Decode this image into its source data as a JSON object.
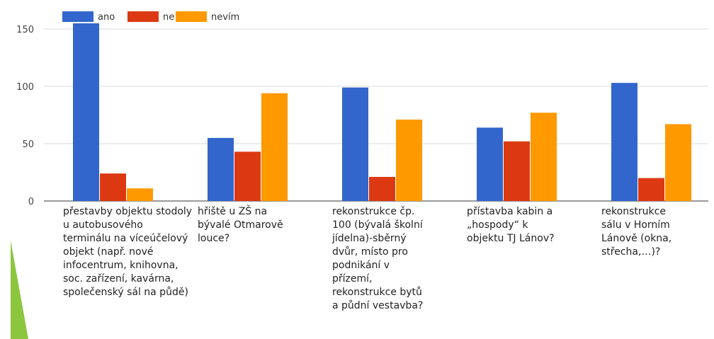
{
  "chart_data": {
    "type": "bar",
    "title": "",
    "xlabel": "",
    "ylabel": "",
    "ylim": [
      0,
      160
    ],
    "yticks": [
      0,
      50,
      100,
      150
    ],
    "grid": true,
    "legend_position": "top-left",
    "categories": [
      "přestavby objektu stodoly u autobusového terminálu na víceúčelový objekt (např. nové infocentrum, knihovna, soc. zařízení, kavárna, společenský sál na půdě)",
      "hřiště u ZŠ na bývalé Otmarově louce?",
      "rekonstrukce čp. 100 (bývalá školní jídelna)-sběrný dvůr, místo pro podnikání v přízemí, rekonstrukce bytů a půdní vestavba?",
      "přístavba kabin a „hospody“ k objektu TJ Lánov?",
      "rekonstrukce sálu v Horním Lánově (okna, střecha,…)?"
    ],
    "category_lines": [
      [
        "přestavby objektu stodoly",
        "u autobusového",
        "terminálu na víceúčelový",
        "objekt (např. nové",
        "infocentrum,  knihovna,",
        "soc. zařízení, kavárna,",
        "společenský sál na půdě)"
      ],
      [
        "hřiště u ZŠ na",
        "bývalé Otmarově",
        "louce?"
      ],
      [
        "rekonstrukce čp.",
        "100 (bývalá školní",
        "jídelna)-sběrný",
        "dvůr, místo pro",
        "podnikání v",
        "přízemí,",
        "rekonstrukce bytů",
        "a půdní vestavba?"
      ],
      [
        "přístavba kabin a",
        "„hospody“ k",
        "objektu TJ Lánov?"
      ],
      [
        "rekonstrukce",
        "sálu v Horním",
        "Lánově (okna,",
        "střecha,…)?"
      ]
    ],
    "series": [
      {
        "name": "ano",
        "color": "#3366cc",
        "values": [
          155,
          55,
          99,
          64,
          103
        ]
      },
      {
        "name": "ne",
        "color": "#dc3912",
        "values": [
          24,
          43,
          21,
          52,
          20
        ]
      },
      {
        "name": "nevím",
        "color": "#ff9900",
        "values": [
          11,
          94,
          71,
          77,
          67
        ]
      }
    ]
  }
}
